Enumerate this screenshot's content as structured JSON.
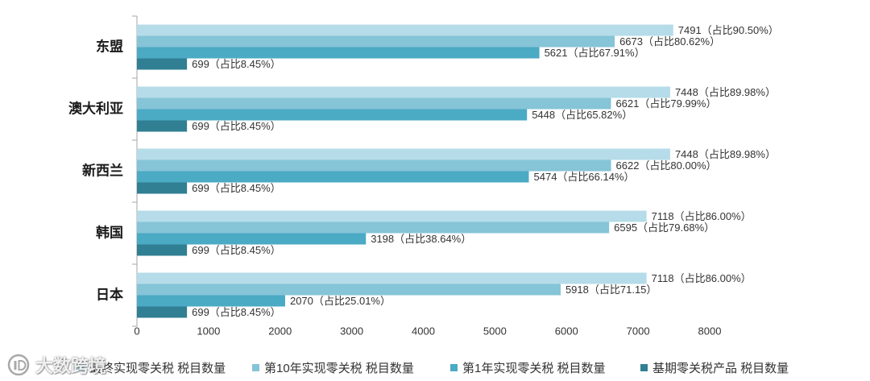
{
  "chart_data": {
    "type": "bar",
    "orientation": "horizontal",
    "categories": [
      "东盟",
      "澳大利亚",
      "新西兰",
      "韩国",
      "日本"
    ],
    "series": [
      {
        "name": "最终实现零关税 税目数量",
        "color": "#B5DCE8",
        "values": [
          7491,
          7448,
          7448,
          7118,
          7118
        ],
        "labels": [
          "7491（占比90.50%）",
          "7448（占比89.98%）",
          "7448（占比89.98%）",
          "7118（占比86.00%）",
          "7118（占比86.00%）"
        ]
      },
      {
        "name": "第10年实现零关税 税目数量",
        "color": "#86C4D7",
        "values": [
          6673,
          6621,
          6622,
          6595,
          5918
        ],
        "labels": [
          "6673（占比80.62%）",
          "6621（占比79.99%）",
          "6622（占比80.00%）",
          "6595（占比79.68%）",
          "5918（占比71.15）"
        ]
      },
      {
        "name": "第1年实现零关税 税目数量",
        "color": "#4BAAC4",
        "values": [
          5621,
          5448,
          5474,
          3198,
          2070
        ],
        "labels": [
          "5621（占比67.91%）",
          "5448（占比65.82%）",
          "5474（占比66.14%）",
          "3198（占比38.64%）",
          "2070（占比25.01%）"
        ]
      },
      {
        "name": "基期零关税产品 税目数量",
        "color": "#317F93",
        "values": [
          699,
          699,
          699,
          699,
          699
        ],
        "labels": [
          "699（占比8.45%）",
          "699（占比8.45%）",
          "699（占比8.45%）",
          "699（占比8.45%）",
          "699（占比8.45%）"
        ]
      }
    ],
    "xlim": [
      0,
      8000
    ],
    "xticks": [
      0,
      1000,
      2000,
      3000,
      4000,
      5000,
      6000,
      7000,
      8000
    ],
    "grid": false,
    "legend": "bottom"
  },
  "watermark": {
    "text": "大数跨境",
    "icon": "watermark-logo-icon"
  }
}
